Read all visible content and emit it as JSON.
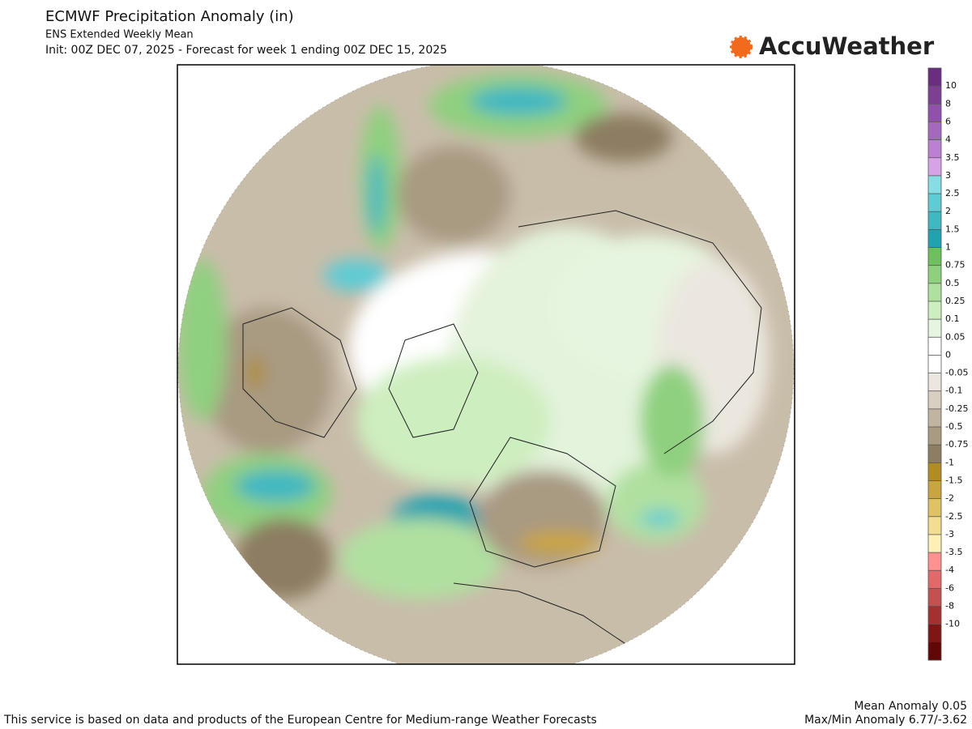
{
  "header": {
    "title": "ECMWF Precipitation Anomaly (in)",
    "subtitle": "ENS Extended Weekly Mean",
    "init": "Init: 00Z DEC 07, 2025 - Forecast for week 1 ending 00Z DEC 15, 2025",
    "brand": "AccuWeather"
  },
  "colorbar": {
    "ticks": [
      10,
      8,
      6,
      4,
      3.5,
      3,
      2.5,
      2,
      1.5,
      1,
      0.75,
      0.5,
      0.25,
      0.1,
      0.05,
      0,
      -0.05,
      -0.1,
      -0.25,
      -0.5,
      -0.75,
      -1,
      -1.5,
      -2,
      -2.5,
      -3,
      -3.5,
      -4,
      -6,
      -8,
      -10
    ],
    "colors": [
      "#6b2d80",
      "#7c3f94",
      "#8f52a8",
      "#a468bd",
      "#bb80d2",
      "#d6a4e6",
      "#86dde3",
      "#5fcbd4",
      "#41b7c2",
      "#22a2b0",
      "#6fbf5e",
      "#8fd07f",
      "#b0e0a0",
      "#cdeebf",
      "#e6f5df",
      "#ffffff",
      "#ffffff",
      "#ebe7df",
      "#d8cfc0",
      "#c1b5a1",
      "#a99a82",
      "#8d7d62",
      "#b08c22",
      "#c9a443",
      "#dfc266",
      "#f2dd91",
      "#fff0b8",
      "#ff9191",
      "#e06a6a",
      "#c25151",
      "#a23232",
      "#7e1616",
      "#620707"
    ]
  },
  "footer": {
    "credit": "This service is based on data and products of the European Centre for Medium-range Weather Forecasts",
    "mean": "Mean Anomaly 0.05",
    "maxmin": "Max/Min Anomaly 6.77/-3.62"
  }
}
